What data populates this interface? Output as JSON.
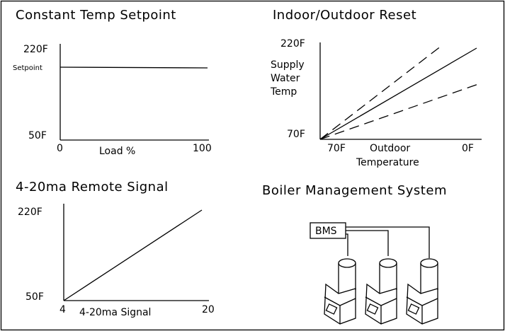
{
  "panels": [
    {
      "title": "Constant Temp Setpoint",
      "y_top": "220F",
      "y_mark": "Setpoint",
      "y_bottom": "50F",
      "x_left": "0",
      "x_label": "Load %",
      "x_right": "100"
    },
    {
      "title": "Indoor/Outdoor Reset",
      "y_top": "220F",
      "y_label": [
        "Supply",
        "Water",
        "Temp"
      ],
      "y_bottom": "70F",
      "x_left": "70F",
      "x_label": [
        "Outdoor",
        "Temperature"
      ],
      "x_right": "0F"
    },
    {
      "title": "4-20ma Remote Signal",
      "y_top": "220F",
      "y_bottom": "50F",
      "x_left": "4",
      "x_label": "4-20ma Signal",
      "x_right": "20"
    },
    {
      "title": "Boiler Management System",
      "box_label": "BMS"
    }
  ]
}
